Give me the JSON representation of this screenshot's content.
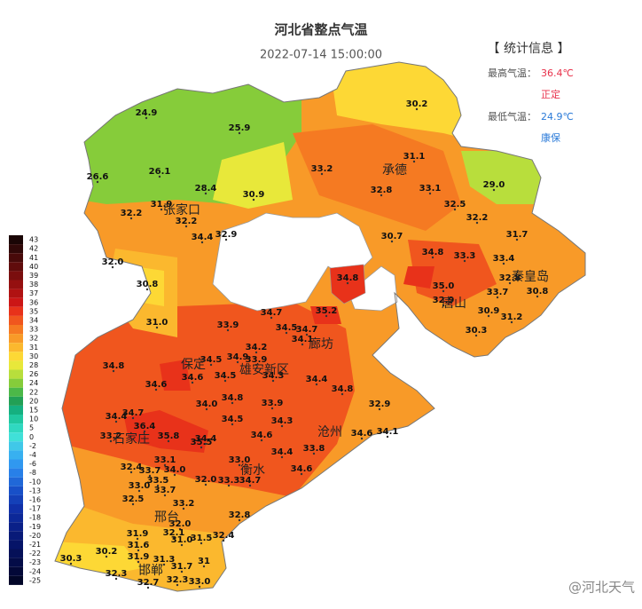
{
  "header": {
    "title": "河北省整点气温",
    "time": "2022-07-14 15:00:00"
  },
  "stats": {
    "heading": "【 统计信息 】",
    "max_label": "最高气温：",
    "max_value": "36.4℃",
    "max_station": "正定",
    "min_label": "最低气温：",
    "min_value": "24.9℃",
    "min_station": "康保"
  },
  "legend": {
    "ticks": [
      43,
      42,
      41,
      40,
      39,
      38,
      37,
      36,
      35,
      34,
      33,
      32,
      31,
      30,
      28,
      26,
      24,
      22,
      20,
      15,
      10,
      5,
      0,
      -2,
      -4,
      -6,
      -8,
      -10,
      -13,
      -16,
      -17,
      -18,
      -19,
      -20,
      -21,
      -22,
      -23,
      -24,
      -25
    ],
    "colors": [
      "#1a0505",
      "#300808",
      "#480a0a",
      "#600c0c",
      "#7a0e0e",
      "#951010",
      "#b01212",
      "#cc1616",
      "#e8321a",
      "#f0561e",
      "#f57a22",
      "#f89a28",
      "#fbb82e",
      "#fdd835",
      "#e8e83a",
      "#b8de3c",
      "#86cc3a",
      "#4cb848",
      "#22a055",
      "#15b080",
      "#20c8a0",
      "#30d8c0",
      "#40e0d8",
      "#40c8e8",
      "#38b0f0",
      "#3098f0",
      "#2880e8",
      "#2068d8",
      "#1850c8",
      "#1440b8",
      "#1030a8",
      "#0c2898",
      "#0a2088",
      "#081a78",
      "#061468",
      "#051058",
      "#040c48",
      "#030838",
      "#020628"
    ]
  },
  "cities": [
    "承德",
    "张家口",
    "秦皇岛",
    "唐山",
    "廊坊",
    "保定",
    "雄安新区",
    "沧州",
    "石家庄",
    "衡水",
    "邢台",
    "邯郸"
  ],
  "stations": [
    "24.9",
    "25.9",
    "26.1",
    "26.6",
    "28.4",
    "30.9",
    "31.9",
    "32.2",
    "32.2",
    "34.4",
    "32.9",
    "32.0",
    "30.8",
    "31.0",
    "30.2",
    "31.1",
    "33.2",
    "32.8",
    "33.1",
    "29.0",
    "32.5",
    "32.2",
    "31.7",
    "30.7",
    "34.8",
    "33.3",
    "33.4",
    "34.8",
    "35.0",
    "32.9",
    "33.7",
    "32.8",
    "30.8",
    "30.9",
    "31.2",
    "30.3",
    "33.9",
    "34.7",
    "34.7",
    "34.5",
    "34.1",
    "35.2",
    "34.9",
    "34.2",
    "33.9",
    "34.5",
    "34.8",
    "34.6",
    "34.6",
    "34.5",
    "34.3",
    "34.4",
    "34.8",
    "34.0",
    "34.8",
    "33.9",
    "32.9",
    "34.5",
    "34.3",
    "34.4",
    "34.7",
    "36.4",
    "35.8",
    "35.5",
    "33.2",
    "34.4",
    "34.6",
    "34.1",
    "34.6",
    "33.8",
    "33.1",
    "34.4",
    "33.0",
    "32.4",
    "33.7",
    "34.0",
    "33.5",
    "33.0",
    "32.0",
    "33.3",
    "34.7",
    "34.6",
    "33.7",
    "32.5",
    "33.2",
    "32.8",
    "32.0",
    "32.1",
    "31.9",
    "31.6",
    "31.0",
    "31.5",
    "32.4",
    "30.2",
    "30.3",
    "31.9",
    "31.3",
    "31.7",
    "32.3",
    "32.7",
    "32.3",
    "33.0",
    "31"
  ],
  "watermark": "@河北天气"
}
